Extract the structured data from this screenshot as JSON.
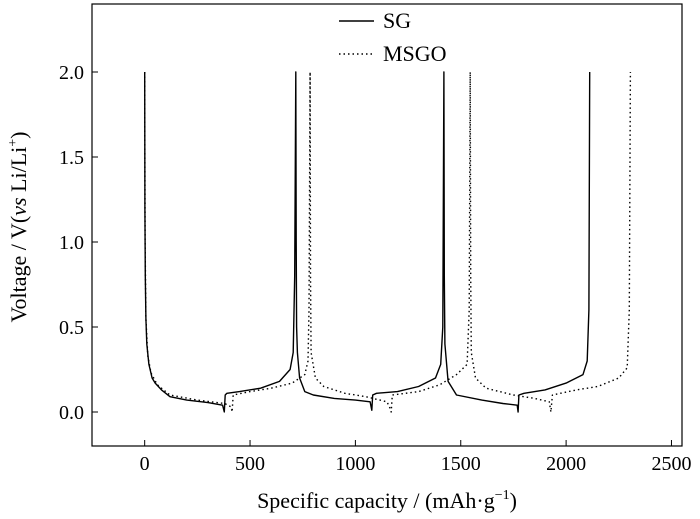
{
  "chart_data": {
    "type": "line",
    "xlabel_text": "Specific capacity / (mAh·g",
    "xlabel_sup": "−1",
    "xlabel_end": ")",
    "ylabel_pre": "Voltage / V(",
    "ylabel_italic": "vs",
    "ylabel_mid": " Li/Li",
    "ylabel_sup": "+",
    "ylabel_end": ")",
    "xlim": [
      -250,
      2550
    ],
    "ylim": [
      -0.2,
      2.4
    ],
    "xticks": [
      0,
      500,
      1000,
      1500,
      2000,
      2500
    ],
    "xtick_labels": [
      "0",
      "500",
      "1000",
      "1500",
      "2000",
      "2500"
    ],
    "yticks": [
      0.0,
      0.5,
      1.0,
      1.5,
      2.0
    ],
    "ytick_labels": [
      "0.0",
      "0.5",
      "1.0",
      "1.5",
      "2.0"
    ],
    "legend_position": "top-center",
    "series": [
      {
        "name": "SG",
        "style": "solid",
        "color": "#000000",
        "points": [
          [
            0,
            2.0
          ],
          [
            1,
            1.2
          ],
          [
            3,
            0.8
          ],
          [
            6,
            0.55
          ],
          [
            10,
            0.4
          ],
          [
            20,
            0.28
          ],
          [
            35,
            0.2
          ],
          [
            50,
            0.17
          ],
          [
            80,
            0.13
          ],
          [
            120,
            0.09
          ],
          [
            200,
            0.07
          ],
          [
            300,
            0.055
          ],
          [
            370,
            0.04
          ],
          [
            378,
            0.0
          ],
          [
            382,
            0.1
          ],
          [
            390,
            0.11
          ],
          [
            450,
            0.12
          ],
          [
            550,
            0.14
          ],
          [
            640,
            0.18
          ],
          [
            690,
            0.25
          ],
          [
            705,
            0.35
          ],
          [
            712,
            0.8
          ],
          [
            717,
            2.0
          ],
          [
            719,
            1.0
          ],
          [
            721,
            0.5
          ],
          [
            725,
            0.35
          ],
          [
            735,
            0.2
          ],
          [
            760,
            0.12
          ],
          [
            800,
            0.1
          ],
          [
            900,
            0.08
          ],
          [
            1000,
            0.07
          ],
          [
            1070,
            0.06
          ],
          [
            1078,
            0.01
          ],
          [
            1082,
            0.1
          ],
          [
            1100,
            0.11
          ],
          [
            1200,
            0.12
          ],
          [
            1300,
            0.15
          ],
          [
            1380,
            0.2
          ],
          [
            1405,
            0.28
          ],
          [
            1415,
            0.5
          ],
          [
            1420,
            2.0
          ],
          [
            1422,
            0.8
          ],
          [
            1425,
            0.4
          ],
          [
            1440,
            0.18
          ],
          [
            1480,
            0.1
          ],
          [
            1600,
            0.07
          ],
          [
            1700,
            0.05
          ],
          [
            1768,
            0.04
          ],
          [
            1772,
            0.0
          ],
          [
            1776,
            0.1
          ],
          [
            1800,
            0.11
          ],
          [
            1900,
            0.13
          ],
          [
            2000,
            0.17
          ],
          [
            2080,
            0.22
          ],
          [
            2100,
            0.3
          ],
          [
            2108,
            0.6
          ],
          [
            2112,
            2.0
          ]
        ]
      },
      {
        "name": "MSGO",
        "style": "dotted",
        "color": "#000000",
        "points": [
          [
            0,
            2.0
          ],
          [
            2,
            1.0
          ],
          [
            6,
            0.55
          ],
          [
            15,
            0.33
          ],
          [
            30,
            0.23
          ],
          [
            60,
            0.16
          ],
          [
            120,
            0.1
          ],
          [
            250,
            0.07
          ],
          [
            380,
            0.05
          ],
          [
            410,
            0.03
          ],
          [
            415,
            0.0
          ],
          [
            420,
            0.1
          ],
          [
            500,
            0.12
          ],
          [
            600,
            0.14
          ],
          [
            700,
            0.17
          ],
          [
            760,
            0.22
          ],
          [
            775,
            0.3
          ],
          [
            780,
            0.6
          ],
          [
            785,
            2.0
          ],
          [
            787,
            0.8
          ],
          [
            790,
            0.35
          ],
          [
            810,
            0.2
          ],
          [
            850,
            0.15
          ],
          [
            950,
            0.11
          ],
          [
            1050,
            0.09
          ],
          [
            1150,
            0.06
          ],
          [
            1165,
            0.02
          ],
          [
            1170,
            0.0
          ],
          [
            1175,
            0.1
          ],
          [
            1300,
            0.12
          ],
          [
            1400,
            0.16
          ],
          [
            1480,
            0.22
          ],
          [
            1530,
            0.28
          ],
          [
            1540,
            0.6
          ],
          [
            1545,
            2.0
          ],
          [
            1547,
            0.8
          ],
          [
            1550,
            0.35
          ],
          [
            1570,
            0.2
          ],
          [
            1620,
            0.14
          ],
          [
            1750,
            0.1
          ],
          [
            1850,
            0.08
          ],
          [
            1920,
            0.06
          ],
          [
            1928,
            0.0
          ],
          [
            1935,
            0.1
          ],
          [
            2050,
            0.13
          ],
          [
            2150,
            0.15
          ],
          [
            2250,
            0.2
          ],
          [
            2290,
            0.26
          ],
          [
            2300,
            0.6
          ],
          [
            2305,
            2.0
          ]
        ]
      }
    ]
  }
}
